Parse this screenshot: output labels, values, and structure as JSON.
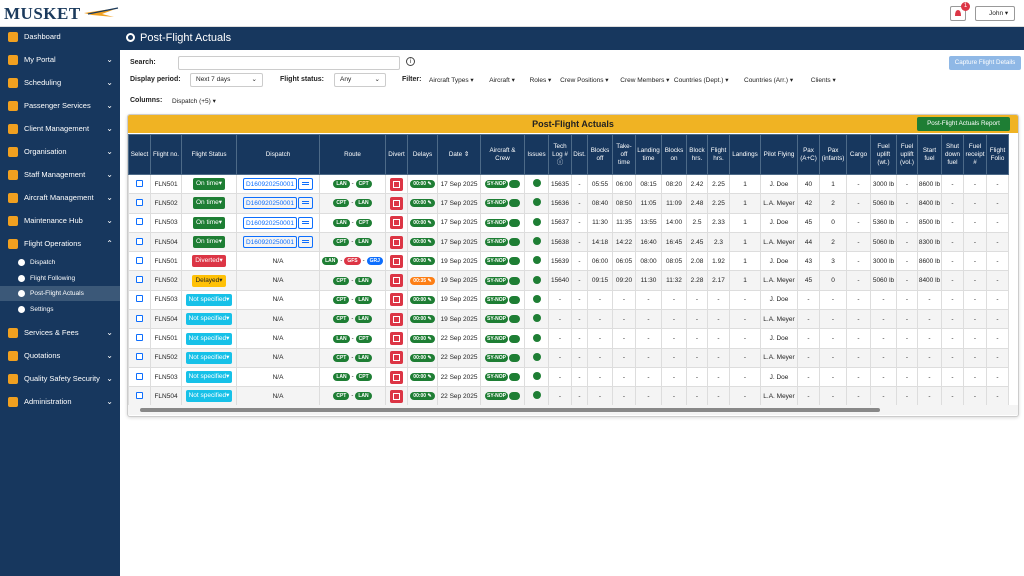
{
  "header": {
    "logo": "MUSKET",
    "notifications": "1",
    "user": "John"
  },
  "sidebar": [
    {
      "label": "Dashboard"
    },
    {
      "label": "My Portal"
    },
    {
      "label": "Scheduling"
    },
    {
      "label": "Passenger Services"
    },
    {
      "label": "Client Management"
    },
    {
      "label": "Organisation"
    },
    {
      "label": "Staff Management"
    },
    {
      "label": "Aircraft Management"
    },
    {
      "label": "Maintenance Hub"
    },
    {
      "label": "Flight Operations",
      "children": [
        "Dispatch",
        "Flight Following",
        "Post-Flight Actuals",
        "Settings"
      ]
    },
    {
      "label": "Services & Fees"
    },
    {
      "label": "Quotations"
    },
    {
      "label": "Quality Safety Security"
    },
    {
      "label": "Administration"
    }
  ],
  "page": {
    "title": "Post-Flight Actuals"
  },
  "toolbar": {
    "search_label": "Search:",
    "capture_button": "Capture Flight Details",
    "period_label": "Display period:",
    "period_value": "Next 7 days",
    "status_label": "Flight status:",
    "status_value": "Any",
    "filter_label": "Filter:",
    "filters": [
      "Aircraft Types",
      "Aircraft",
      "Roles",
      "Crew Positions",
      "Crew Members",
      "Countries (Dept.)",
      "Countries (Arr.)",
      "Clients"
    ],
    "columns_label": "Columns:",
    "columns_value": "Dispatch (+5)"
  },
  "table": {
    "title": "Post-Flight Actuals",
    "report_button": "Post-Flight Actuals Report",
    "columns": [
      "Select",
      "Flight no.",
      "Flight Status",
      "Dispatch",
      "Route",
      "Divert",
      "Delays",
      "Date",
      "Aircraft & Crew",
      "Issues",
      "Tech Log #",
      "Dist.",
      "Blocks off",
      "Take-off time",
      "Landing time",
      "Blocks on",
      "Block hrs.",
      "Flight hrs.",
      "Landings",
      "Pilot Flying",
      "Pax (A+C)",
      "Pax (infants)",
      "Cargo",
      "Fuel uplift (wt.)",
      "Fuel uplift (vol.)",
      "Start fuel",
      "Shut down fuel",
      "Fuel receipt #",
      "Flight Folio"
    ],
    "rows": [
      {
        "flight": "FLN501",
        "status": "On time",
        "status_color": "#1e7e34",
        "dispatch": "D160920250001",
        "dispatch_link": true,
        "route": [
          "LAN",
          "CPT"
        ],
        "delay": "00:00",
        "date": "17 Sep 2025",
        "aircraft": "SY-NOP",
        "cells": [
          "15635",
          "-",
          "05:55",
          "06:00",
          "08:15",
          "08:20",
          "2.42",
          "2.25",
          "1",
          "J. Doe",
          "40",
          "1",
          "-",
          "3000 lb",
          "-",
          "8600 lb",
          "-",
          "-",
          "-"
        ]
      },
      {
        "flight": "FLN502",
        "status": "On time",
        "status_color": "#1e7e34",
        "dispatch": "D160920250001",
        "dispatch_link": true,
        "route": [
          "CPT",
          "LAN"
        ],
        "delay": "00:00",
        "date": "17 Sep 2025",
        "aircraft": "SY-NOP",
        "cells": [
          "15636",
          "-",
          "08:40",
          "08:50",
          "11:05",
          "11:09",
          "2.48",
          "2.25",
          "1",
          "L.A. Meyer",
          "42",
          "2",
          "-",
          "5060 lb",
          "-",
          "8400 lb",
          "-",
          "-",
          "-"
        ]
      },
      {
        "flight": "FLN503",
        "status": "On time",
        "status_color": "#1e7e34",
        "dispatch": "D160920250001",
        "dispatch_link": true,
        "route": [
          "LAN",
          "CPT"
        ],
        "delay": "00:00",
        "date": "17 Sep 2025",
        "aircraft": "SY-NOP",
        "cells": [
          "15637",
          "-",
          "11:30",
          "11:35",
          "13:55",
          "14:00",
          "2.5",
          "2.33",
          "1",
          "J. Doe",
          "45",
          "0",
          "-",
          "5360 lb",
          "-",
          "8500 lb",
          "-",
          "-",
          "-"
        ]
      },
      {
        "flight": "FLN504",
        "status": "On time",
        "status_color": "#1e7e34",
        "dispatch": "D160920250001",
        "dispatch_link": true,
        "route": [
          "CPT",
          "LAN"
        ],
        "delay": "00:00",
        "date": "17 Sep 2025",
        "aircraft": "SY-NOP",
        "cells": [
          "15638",
          "-",
          "14:18",
          "14:22",
          "16:40",
          "16:45",
          "2.45",
          "2.3",
          "1",
          "L.A. Meyer",
          "44",
          "2",
          "-",
          "5060 lb",
          "-",
          "8300 lb",
          "-",
          "-",
          "-"
        ]
      },
      {
        "flight": "FLN501",
        "status": "Diverted",
        "status_color": "#dc3545",
        "dispatch": "N/A",
        "route": [
          "LAN",
          "GFS",
          "GRJ"
        ],
        "route_colors": [
          "#1e7e34",
          "#dc3545",
          "#0d6efd"
        ],
        "delay": "00:00",
        "date": "19 Sep 2025",
        "aircraft": "SY-NOP",
        "cells": [
          "15639",
          "-",
          "06:00",
          "06:05",
          "08:00",
          "08:05",
          "2.08",
          "1.92",
          "1",
          "J. Doe",
          "43",
          "3",
          "-",
          "3000 lb",
          "-",
          "8600 lb",
          "-",
          "-",
          "-"
        ]
      },
      {
        "flight": "FLN502",
        "status": "Delayed",
        "status_color": "#ffc107",
        "dispatch": "N/A",
        "route": [
          "CPT",
          "LAN"
        ],
        "delay": "00:35",
        "delay_color": "#fd7e14",
        "date": "19 Sep 2025",
        "aircraft": "SY-NOP",
        "cells": [
          "15640",
          "-",
          "09:15",
          "09:20",
          "11:30",
          "11:32",
          "2.28",
          "2.17",
          "1",
          "L.A. Meyer",
          "45",
          "0",
          "-",
          "5060 lb",
          "-",
          "8400 lb",
          "-",
          "-",
          "-"
        ]
      },
      {
        "flight": "FLN503",
        "status": "Not specified",
        "status_color": "#17c1e8",
        "dispatch": "N/A",
        "route": [
          "CPT",
          "LAN"
        ],
        "delay": "00:00",
        "date": "19 Sep 2025",
        "aircraft": "SY-NOP",
        "cells": [
          "-",
          "-",
          "-",
          "-",
          "-",
          "-",
          "-",
          "-",
          "-",
          "J. Doe",
          "-",
          "-",
          "-",
          "-",
          "-",
          "-",
          "-",
          "-",
          "-"
        ]
      },
      {
        "flight": "FLN504",
        "status": "Not specified",
        "status_color": "#17c1e8",
        "dispatch": "N/A",
        "route": [
          "CPT",
          "LAN"
        ],
        "delay": "00:00",
        "date": "19 Sep 2025",
        "aircraft": "SY-NOP",
        "cells": [
          "-",
          "-",
          "-",
          "-",
          "-",
          "-",
          "-",
          "-",
          "-",
          "L.A. Meyer",
          "-",
          "-",
          "-",
          "-",
          "-",
          "-",
          "-",
          "-",
          "-"
        ]
      },
      {
        "flight": "FLN501",
        "status": "Not specified",
        "status_color": "#17c1e8",
        "dispatch": "N/A",
        "route": [
          "LAN",
          "CPT"
        ],
        "delay": "00:00",
        "date": "22 Sep 2025",
        "aircraft": "SY-NOP",
        "cells": [
          "-",
          "-",
          "-",
          "-",
          "-",
          "-",
          "-",
          "-",
          "-",
          "J. Doe",
          "-",
          "-",
          "-",
          "-",
          "-",
          "-",
          "-",
          "-",
          "-"
        ]
      },
      {
        "flight": "FLN502",
        "status": "Not specified",
        "status_color": "#17c1e8",
        "dispatch": "N/A",
        "route": [
          "CPT",
          "LAN"
        ],
        "delay": "00:00",
        "date": "22 Sep 2025",
        "aircraft": "SY-NOP",
        "cells": [
          "-",
          "-",
          "-",
          "-",
          "-",
          "-",
          "-",
          "-",
          "-",
          "L.A. Meyer",
          "-",
          "-",
          "-",
          "-",
          "-",
          "-",
          "-",
          "-",
          "-"
        ]
      },
      {
        "flight": "FLN503",
        "status": "Not specified",
        "status_color": "#17c1e8",
        "dispatch": "N/A",
        "route": [
          "LAN",
          "CPT"
        ],
        "delay": "00:00",
        "date": "22 Sep 2025",
        "aircraft": "SY-NOP",
        "cells": [
          "-",
          "-",
          "-",
          "-",
          "-",
          "-",
          "-",
          "-",
          "-",
          "J. Doe",
          "-",
          "-",
          "-",
          "-",
          "-",
          "-",
          "-",
          "-",
          "-"
        ]
      },
      {
        "flight": "FLN504",
        "status": "Not specified",
        "status_color": "#17c1e8",
        "dispatch": "N/A",
        "route": [
          "CPT",
          "LAN"
        ],
        "delay": "00:00",
        "date": "22 Sep 2025",
        "aircraft": "SY-NOP",
        "cells": [
          "-",
          "-",
          "-",
          "-",
          "-",
          "-",
          "-",
          "-",
          "-",
          "L.A. Meyer",
          "-",
          "-",
          "-",
          "-",
          "-",
          "-",
          "-",
          "-",
          "-"
        ]
      }
    ]
  }
}
